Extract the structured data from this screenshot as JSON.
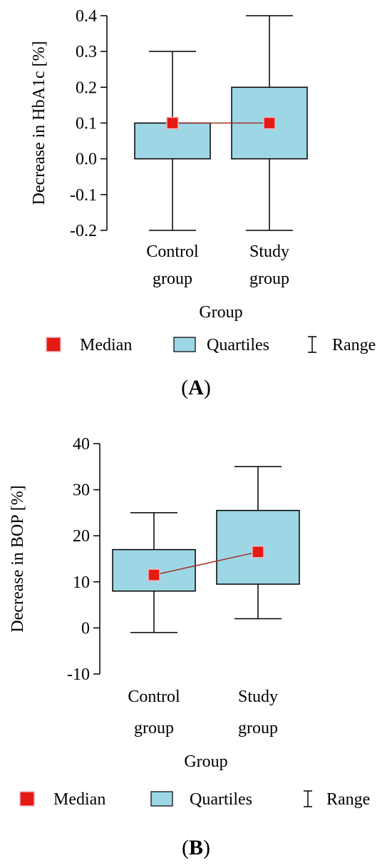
{
  "chart_data": [
    {
      "type": "boxplot",
      "panel_label": "A",
      "xlabel": "Group",
      "ylabel": "Decrease in HbA1c [%]",
      "ylim": [
        -0.2,
        0.4
      ],
      "y_ticks": [
        "-0.2",
        "-0.1",
        "0.0",
        "0.1",
        "0.2",
        "0.3",
        "0.4"
      ],
      "y_tick_values": [
        -0.2,
        -0.1,
        0.0,
        0.1,
        0.2,
        0.3,
        0.4
      ],
      "categories": [
        [
          "Control",
          "group"
        ],
        [
          "Study",
          "group"
        ]
      ],
      "boxes": [
        {
          "min": -0.2,
          "q1": 0.0,
          "median": 0.1,
          "q3": 0.1,
          "max": 0.3
        },
        {
          "min": -0.2,
          "q1": 0.0,
          "median": 0.1,
          "q3": 0.2,
          "max": 0.4
        }
      ],
      "legend": [
        "Median",
        "Quartiles",
        "Range"
      ],
      "colors": {
        "box": "#9dd7e5",
        "median": "#e41a13",
        "median_line": "#a0302a"
      }
    },
    {
      "type": "boxplot",
      "panel_label": "B",
      "xlabel": "Group",
      "ylabel": "Decrease in BOP [%]",
      "ylim": [
        -10,
        40
      ],
      "y_ticks": [
        "-10",
        "0",
        "10",
        "20",
        "30",
        "40"
      ],
      "y_tick_values": [
        -10,
        0,
        10,
        20,
        30,
        40
      ],
      "categories": [
        [
          "Control",
          "group"
        ],
        [
          "Study",
          "group"
        ]
      ],
      "boxes": [
        {
          "min": -1,
          "q1": 8,
          "median": 11.5,
          "q3": 17,
          "max": 25
        },
        {
          "min": 2,
          "q1": 9.5,
          "median": 16.5,
          "q3": 25.5,
          "max": 35
        }
      ],
      "legend": [
        "Median",
        "Quartiles",
        "Range"
      ],
      "colors": {
        "box": "#9dd7e5",
        "median": "#e41a13",
        "median_line": "#a0302a"
      }
    }
  ]
}
